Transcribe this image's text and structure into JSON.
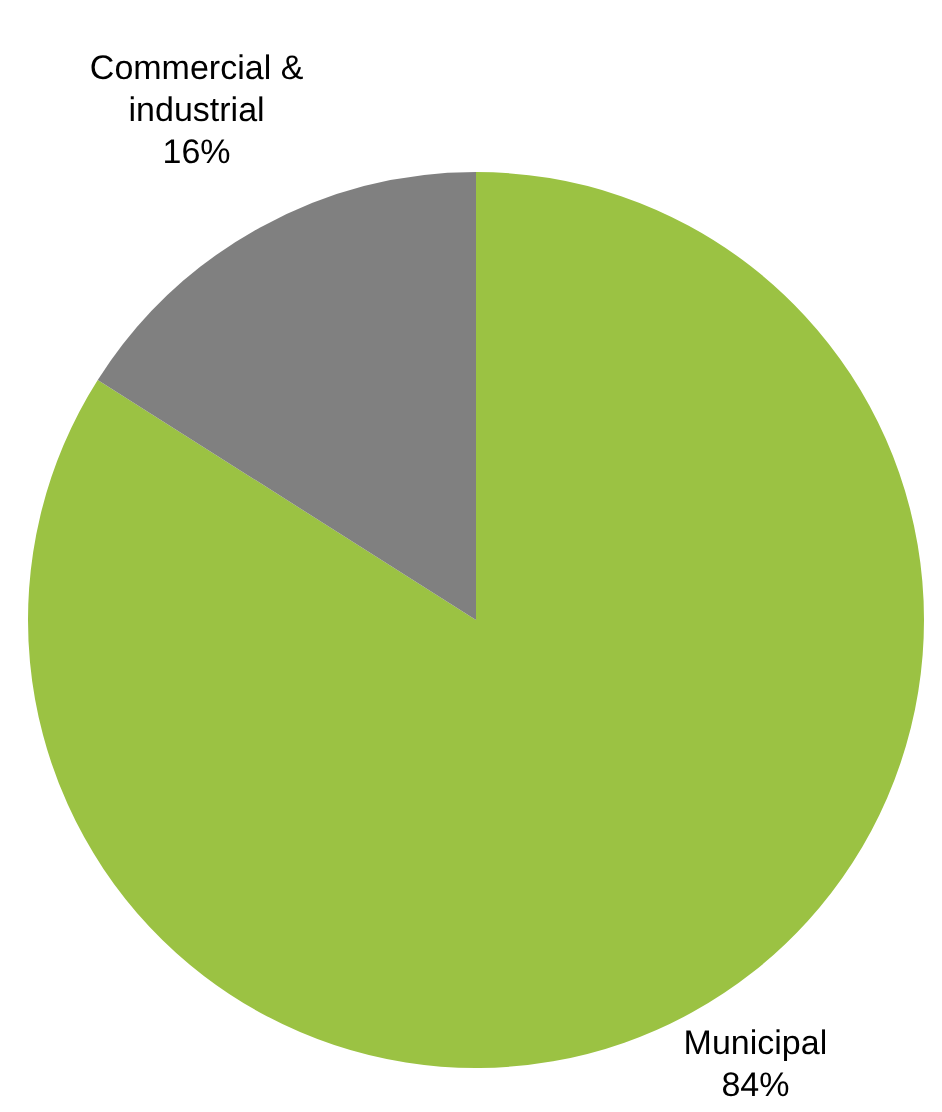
{
  "chart_data": {
    "type": "pie",
    "categories": [
      "Municipal",
      "Commercial & industrial"
    ],
    "values": [
      84,
      16
    ],
    "value_labels": [
      "84%",
      "16%"
    ],
    "colors": [
      "#9bc243",
      "#808080"
    ],
    "legend": false
  }
}
